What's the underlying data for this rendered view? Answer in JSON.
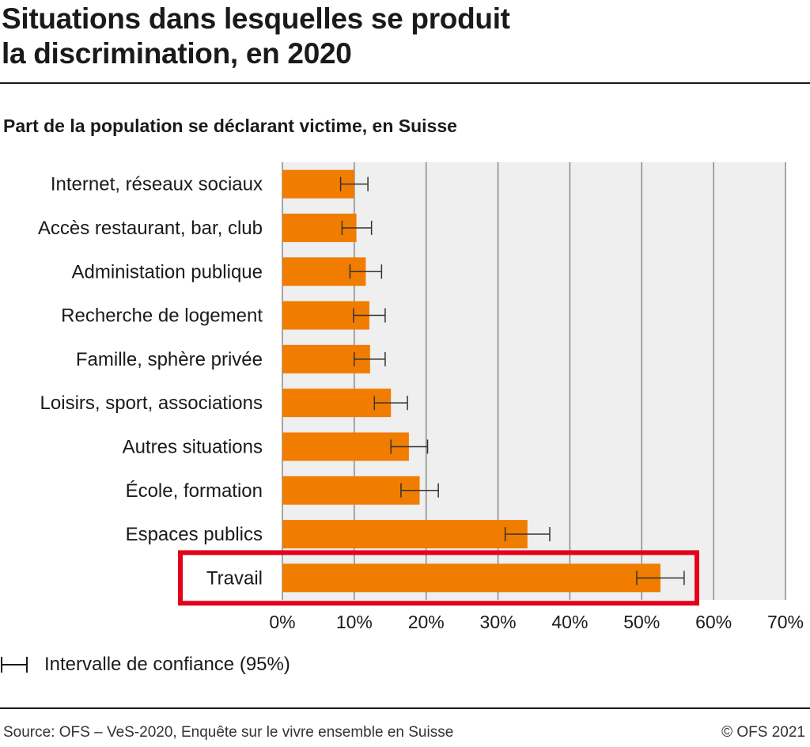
{
  "header": {
    "title_line1": "Situations dans lesquelles se produit",
    "title_line2": "la discrimination, en 2020",
    "subtitle": "Part de la population se déclarant victime, en Suisse"
  },
  "legend": {
    "label": "Intervalle de confiance (95%)"
  },
  "footer": {
    "source": "Source: OFS – VeS-2020, Enquête sur le vivre ensemble en Suisse",
    "copyright": "© OFS 2021"
  },
  "colors": {
    "bar": "#F07D00",
    "plot_bg": "#EFEFEF",
    "grid": "#8A8A8A",
    "highlight": "#E3001B",
    "text": "#1A1A1A"
  },
  "chart_data": {
    "type": "bar",
    "orientation": "horizontal",
    "title": "Situations dans lesquelles se produit la discrimination, en 2020",
    "subtitle": "Part de la population se déclarant victime, en Suisse",
    "unit": "%",
    "categories": [
      "Internet, réseaux sociaux",
      "Accès restaurant, bar, club",
      "Administation publique",
      "Recherche de logement",
      "Famille, sphère privée",
      "Loisirs, sport, associations",
      "Autres situations",
      "École, formation",
      "Espaces publics",
      "Travail"
    ],
    "values": [
      10.0,
      10.3,
      11.6,
      12.1,
      12.2,
      15.1,
      17.6,
      19.1,
      34.1,
      52.6
    ],
    "ci_lower": [
      8.1,
      8.3,
      9.4,
      9.9,
      10.0,
      12.8,
      15.1,
      16.5,
      31.0,
      49.3
    ],
    "ci_upper": [
      11.9,
      12.4,
      13.8,
      14.3,
      14.3,
      17.4,
      20.2,
      21.7,
      37.2,
      55.9
    ],
    "highlighted_category": "Travail",
    "xlim": [
      0,
      70
    ],
    "xticks": [
      0,
      10,
      20,
      30,
      40,
      50,
      60,
      70
    ],
    "xtick_labels": [
      "0%",
      "10%",
      "20%",
      "30%",
      "40%",
      "50%",
      "60%",
      "70%"
    ],
    "grid": true,
    "legend": "bottom-left"
  }
}
